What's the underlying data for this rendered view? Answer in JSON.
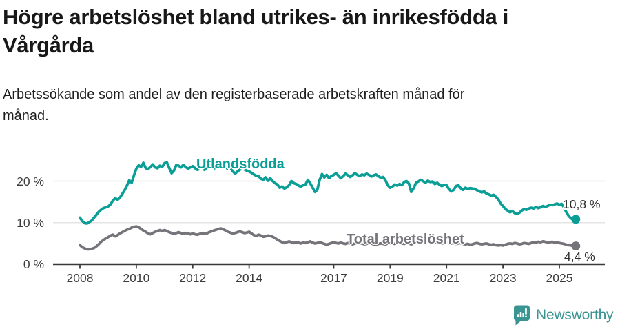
{
  "header": {
    "title": "Högre arbetslöshet bland utrikes- än inrikesfödda i Vårgårda",
    "subtitle": "Arbetssökande som andel av den registerbaserade arbetskraften månad för månad."
  },
  "colors": {
    "foreign_born_line": "#0a9e96",
    "total_line": "#76737a",
    "axis": "#3a3a3a",
    "gridline": "#e4e4e4",
    "brand_teal": "#3a9492",
    "text_dark": "#181818"
  },
  "chart_data": {
    "type": "line",
    "title": "Högre arbetslöshet bland utrikes- än inrikesfödda i Vårgårda",
    "subtitle": "Arbetssökande som andel av den registerbaserade arbetskraften månad för månad.",
    "unit": "%",
    "grid": "horizontal",
    "legend_position": "inline-labels-on-lines",
    "ylim": [
      0,
      26
    ],
    "y_ticks": [
      {
        "label": "0 %",
        "value": 0
      },
      {
        "label": "10 %",
        "value": 10
      },
      {
        "label": "20 %",
        "value": 20
      }
    ],
    "x_ticks": [
      {
        "label": "2008",
        "year": 2008
      },
      {
        "label": "2010",
        "year": 2010
      },
      {
        "label": "2012",
        "year": 2012
      },
      {
        "label": "2014",
        "year": 2014
      },
      {
        "label": "2017",
        "year": 2017
      },
      {
        "label": "2019",
        "year": 2019
      },
      {
        "label": "2021",
        "year": 2021
      },
      {
        "label": "2023",
        "year": 2023
      },
      {
        "label": "2025",
        "year": 2025
      }
    ],
    "series": [
      {
        "name": "Utlandsfödda",
        "color": "#0a9e96",
        "start_year": 2008,
        "step_months": 1,
        "end_label": "10,8 %",
        "end_value": 10.8,
        "values": [
          11.2,
          10.4,
          9.9,
          9.8,
          10.1,
          10.5,
          11.2,
          11.9,
          12.6,
          13.1,
          13.5,
          13.7,
          13.9,
          14.4,
          15.3,
          15.9,
          15.5,
          16.0,
          16.9,
          17.8,
          18.9,
          20.2,
          19.6,
          21.4,
          23.0,
          23.8,
          23.4,
          24.4,
          23.1,
          22.9,
          23.4,
          24.0,
          23.3,
          23.1,
          23.7,
          23.4,
          24.3,
          24.5,
          23.2,
          21.9,
          22.5,
          23.9,
          23.7,
          23.3,
          23.9,
          23.4,
          23.0,
          23.3,
          23.6,
          23.1,
          22.7,
          23.0,
          23.4,
          22.7,
          23.2,
          23.8,
          23.4,
          23.0,
          23.4,
          23.9,
          24.2,
          23.7,
          23.3,
          22.9,
          23.2,
          22.4,
          21.8,
          22.3,
          22.7,
          23.1,
          22.8,
          22.5,
          22.3,
          22.0,
          21.6,
          21.3,
          21.2,
          20.6,
          20.3,
          20.9,
          20.1,
          20.7,
          20.0,
          19.5,
          19.2,
          18.4,
          18.7,
          18.2,
          18.5,
          19.0,
          20.0,
          19.5,
          19.3,
          18.9,
          18.7,
          19.0,
          19.2,
          20.3,
          19.5,
          18.4,
          17.4,
          17.9,
          20.3,
          21.7,
          20.9,
          21.5,
          20.7,
          21.2,
          21.5,
          21.9,
          21.3,
          20.7,
          21.2,
          21.8,
          21.4,
          21.0,
          21.4,
          21.9,
          21.5,
          21.2,
          21.6,
          21.4,
          21.8,
          21.5,
          21.1,
          21.4,
          21.6,
          21.2,
          20.8,
          21.0,
          20.2,
          19.0,
          18.4,
          18.7,
          19.2,
          18.9,
          19.3,
          19.0,
          19.8,
          20.0,
          19.4,
          17.4,
          18.3,
          19.6,
          19.9,
          20.3,
          20.0,
          19.6,
          20.1,
          19.8,
          19.9,
          19.3,
          19.6,
          19.1,
          18.8,
          19.1,
          19.0,
          18.1,
          17.5,
          17.9,
          18.8,
          19.0,
          18.3,
          17.9,
          18.4,
          18.1,
          18.3,
          18.2,
          18.1,
          17.8,
          17.5,
          17.3,
          17.5,
          17.0,
          16.8,
          16.5,
          16.7,
          16.2,
          15.6,
          14.6,
          14.0,
          13.3,
          12.9,
          12.5,
          12.8,
          12.3,
          12.1,
          12.4,
          12.9,
          13.3,
          13.1,
          13.4,
          13.6,
          13.4,
          13.8,
          13.5,
          13.7,
          14.0,
          13.8,
          14.0,
          14.3,
          14.2,
          14.4,
          14.6,
          14.3,
          14.5,
          13.6,
          12.5,
          11.6,
          11.0,
          10.7,
          10.8
        ]
      },
      {
        "name": "Total arbetslöshet",
        "color": "#76737a",
        "start_year": 2008,
        "step_months": 1,
        "end_label": "4,4 %",
        "end_value": 4.4,
        "values": [
          4.6,
          4.1,
          3.8,
          3.6,
          3.6,
          3.7,
          3.9,
          4.3,
          4.8,
          5.4,
          5.8,
          6.2,
          6.5,
          6.9,
          7.1,
          6.7,
          7.0,
          7.4,
          7.7,
          8.0,
          8.3,
          8.5,
          8.8,
          9.0,
          9.1,
          8.9,
          8.5,
          8.1,
          7.8,
          7.4,
          7.2,
          7.5,
          7.8,
          8.0,
          8.2,
          8.0,
          8.2,
          8.0,
          7.7,
          7.5,
          7.3,
          7.5,
          7.7,
          7.5,
          7.3,
          7.5,
          7.4,
          7.2,
          7.4,
          7.2,
          7.1,
          7.3,
          7.5,
          7.3,
          7.4,
          7.7,
          7.9,
          8.1,
          8.3,
          8.5,
          8.6,
          8.4,
          8.1,
          7.8,
          7.6,
          7.4,
          7.5,
          7.7,
          7.9,
          7.7,
          7.5,
          7.6,
          7.8,
          7.4,
          7.0,
          6.8,
          7.1,
          6.9,
          6.6,
          6.7,
          6.9,
          6.8,
          6.6,
          6.3,
          5.9,
          5.6,
          5.3,
          5.1,
          5.3,
          5.5,
          5.3,
          5.1,
          5.3,
          5.2,
          5.0,
          5.2,
          5.1,
          5.3,
          5.5,
          5.2,
          5.0,
          5.1,
          5.3,
          5.1,
          4.9,
          4.7,
          4.9,
          5.1,
          5.3,
          5.1,
          5.0,
          5.2,
          5.0,
          4.9,
          5.1,
          5.0,
          4.8,
          5.0,
          5.2,
          5.1,
          5.0,
          4.8,
          4.9,
          5.1,
          5.0,
          4.8,
          4.7,
          4.9,
          5.0,
          4.9,
          4.8,
          5.0,
          5.1,
          5.0,
          4.9,
          5.1,
          5.2,
          5.0,
          4.9,
          5.1,
          5.0,
          4.8,
          5.0,
          5.2,
          5.4,
          5.3,
          5.5,
          5.6,
          5.4,
          5.3,
          5.4,
          5.2,
          5.1,
          5.2,
          5.0,
          5.1,
          5.2,
          5.1,
          5.0,
          5.1,
          4.9,
          5.0,
          5.1,
          4.9,
          4.8,
          4.9,
          4.7,
          4.8,
          5.0,
          5.1,
          4.9,
          4.8,
          4.9,
          5.0,
          4.8,
          4.7,
          4.8,
          4.6,
          4.5,
          4.6,
          4.5,
          4.7,
          4.9,
          5.0,
          4.9,
          5.1,
          5.0,
          4.8,
          4.9,
          5.1,
          5.0,
          4.9,
          5.1,
          5.3,
          5.2,
          5.4,
          5.3,
          5.5,
          5.4,
          5.2,
          5.3,
          5.4,
          5.2,
          5.3,
          5.1,
          5.0,
          4.9,
          4.7,
          4.6,
          4.5,
          4.4,
          4.4
        ]
      }
    ]
  },
  "footer": {
    "brand": "Newsworthy",
    "logo_icon": "bar-chart-speech-bubble"
  }
}
